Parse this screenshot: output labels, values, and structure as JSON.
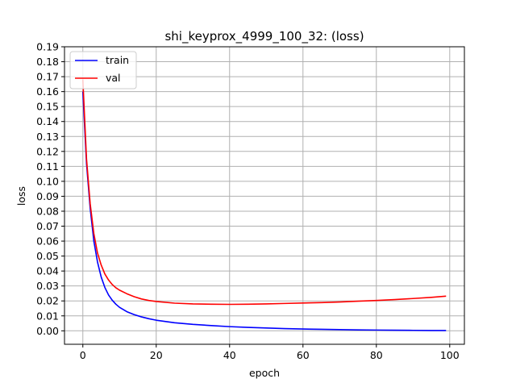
{
  "chart_data": {
    "type": "line",
    "title": "shi_keyprox_4999_100_32: (loss)",
    "xlabel": "epoch",
    "ylabel": "loss",
    "xlim": [
      -5,
      104
    ],
    "ylim": [
      -0.009,
      0.19
    ],
    "xticks": [
      0,
      20,
      40,
      60,
      80,
      100
    ],
    "yticks": [
      0.0,
      0.01,
      0.02,
      0.03,
      0.04,
      0.05,
      0.06,
      0.07,
      0.08,
      0.09,
      0.1,
      0.11,
      0.12,
      0.13,
      0.14,
      0.15,
      0.16,
      0.17,
      0.18,
      0.19
    ],
    "ytick_labels": [
      "0.00",
      "0.01",
      "0.02",
      "0.03",
      "0.04",
      "0.05",
      "0.06",
      "0.07",
      "0.08",
      "0.09",
      "0.10",
      "0.11",
      "0.12",
      "0.13",
      "0.14",
      "0.15",
      "0.16",
      "0.17",
      "0.18",
      "0.19"
    ],
    "xtick_labels": [
      "0",
      "20",
      "40",
      "60",
      "80",
      "100"
    ],
    "grid": true,
    "legend_position": "top-left",
    "series": [
      {
        "name": "train",
        "color": "#0000ff",
        "x": [
          0,
          1,
          2,
          3,
          4,
          5,
          6,
          7,
          8,
          9,
          10,
          12,
          14,
          16,
          18,
          20,
          25,
          30,
          35,
          40,
          45,
          50,
          55,
          60,
          65,
          70,
          75,
          80,
          85,
          90,
          95,
          99
        ],
        "y": [
          0.16,
          0.112,
          0.082,
          0.06,
          0.046,
          0.036,
          0.029,
          0.024,
          0.0205,
          0.0178,
          0.0157,
          0.0128,
          0.0108,
          0.0093,
          0.0081,
          0.0071,
          0.0054,
          0.0043,
          0.0035,
          0.0028,
          0.0023,
          0.0019,
          0.0015,
          0.0012,
          0.001,
          0.0008,
          0.0006,
          0.0005,
          0.0004,
          0.0003,
          0.0002,
          0.0002
        ]
      },
      {
        "name": "val",
        "color": "#ff0000",
        "x": [
          0,
          1,
          2,
          3,
          4,
          5,
          6,
          7,
          8,
          9,
          10,
          12,
          14,
          16,
          18,
          20,
          25,
          30,
          35,
          40,
          45,
          50,
          55,
          60,
          65,
          70,
          75,
          80,
          85,
          90,
          95,
          99
        ],
        "y": [
          0.168,
          0.115,
          0.085,
          0.065,
          0.052,
          0.044,
          0.038,
          0.034,
          0.031,
          0.0288,
          0.0272,
          0.0248,
          0.0228,
          0.0213,
          0.0203,
          0.0196,
          0.0185,
          0.018,
          0.0178,
          0.0177,
          0.0178,
          0.018,
          0.0183,
          0.0186,
          0.0189,
          0.0193,
          0.0198,
          0.0203,
          0.0209,
          0.0216,
          0.0224,
          0.0232
        ]
      }
    ]
  }
}
